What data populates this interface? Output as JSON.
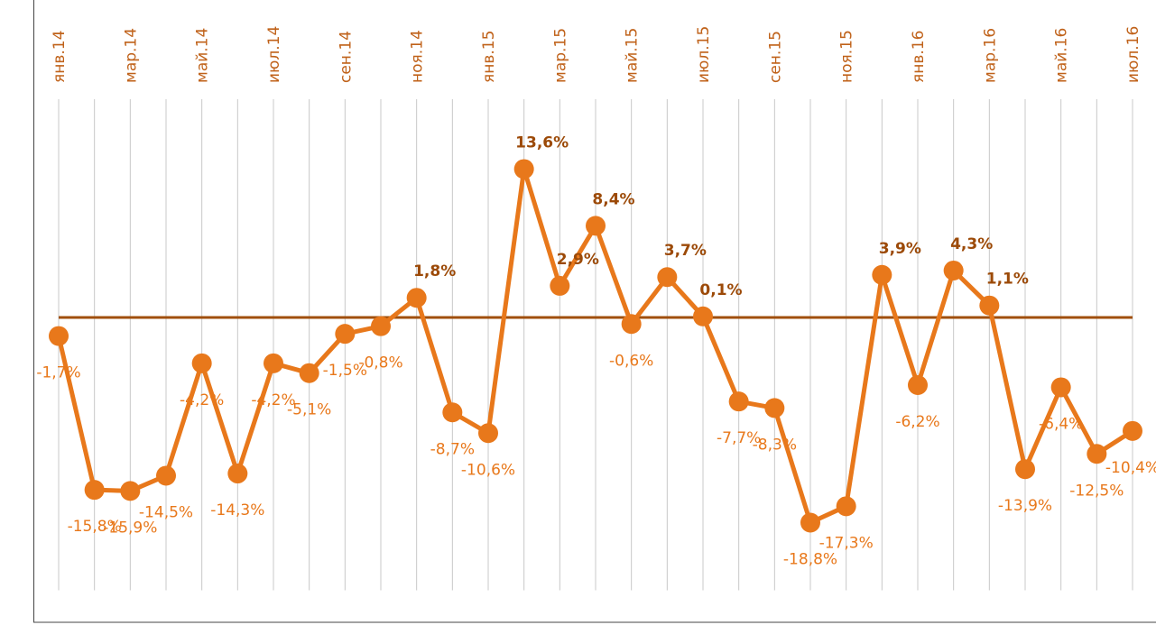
{
  "chart_data": {
    "type": "line",
    "categories": [
      "янв.14",
      null,
      "мар.14",
      null,
      "май.14",
      null,
      "июл.14",
      null,
      "сен.14",
      null,
      "ноя.14",
      null,
      "янв.15",
      null,
      "мар.15",
      null,
      "май.15",
      null,
      "июл.15",
      null,
      "сен.15",
      null,
      "ноя.15",
      null,
      "янв.16",
      null,
      "мар.16",
      null,
      "май.16",
      null,
      "июл.16"
    ],
    "series": [
      {
        "color": "#e8781b",
        "values": [
          -1.7,
          -15.8,
          -15.9,
          -14.5,
          -4.2,
          -14.3,
          -4.2,
          -5.1,
          -1.5,
          -0.8,
          1.8,
          -8.7,
          -10.6,
          13.6,
          2.9,
          8.4,
          -0.6,
          3.7,
          0.1,
          -7.7,
          -8.3,
          -18.8,
          -17.3,
          3.9,
          -6.2,
          4.3,
          1.1,
          -13.9,
          -6.4,
          -12.5,
          -10.4
        ],
        "value_labels": [
          "-1,7%",
          "-15,8%",
          "-15,9%",
          "-14,5%",
          "-4,2%",
          "-14,3%",
          "-4,2%",
          "-5,1%",
          "-1,5%",
          "-0,8%",
          "1,8%",
          "-8,7%",
          "-10,6%",
          "13,6%",
          "2,9%",
          "8,4%",
          "-0,6%",
          "3,7%",
          "0,1%",
          "-7,7%",
          "-8,3%",
          "-18,8%",
          "-17,3%",
          "3,9%",
          "-6,2%",
          "4,3%",
          "1,1%",
          "-13,9%",
          "-6,4%",
          "-12,5%",
          "-10,4%"
        ]
      }
    ],
    "ylim": [
      -25,
      20
    ]
  }
}
